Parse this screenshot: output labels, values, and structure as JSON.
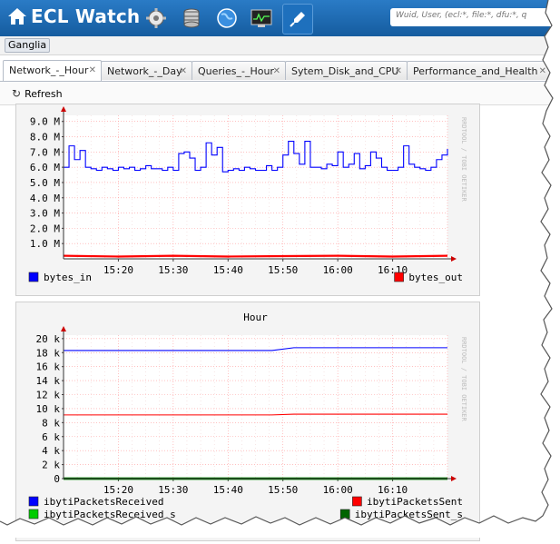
{
  "app": {
    "title": "ECL Watch"
  },
  "header": {
    "icons": [
      "home-icon",
      "gear-icon",
      "database-icon",
      "globe-icon",
      "monitor-icon",
      "plug-icon"
    ],
    "search_placeholder": "Wuid, User, (ecl:*, file:*, dfu:*, q"
  },
  "breadcrumb": {
    "label": "Ganglia"
  },
  "tabs": [
    {
      "label": "Network_-_Hour",
      "active": true
    },
    {
      "label": "Network_-_Day",
      "active": false
    },
    {
      "label": "Queries_-_Hour",
      "active": false
    },
    {
      "label": "Sytem_Disk_and_CPU",
      "active": false
    },
    {
      "label": "Performance_and_Health",
      "active": false
    }
  ],
  "toolbar": {
    "refresh_label": "Refresh"
  },
  "rrdtool_label": "RRDTOOL / TOBI OETIKER",
  "chart_data": [
    {
      "type": "line",
      "title": "",
      "y_ticks": [
        "9.0 M",
        "8.0 M",
        "7.0 M",
        "6.0 M",
        "5.0 M",
        "4.0 M",
        "3.0 M",
        "2.0 M",
        "1.0 M"
      ],
      "x_ticks": [
        "15:20",
        "15:30",
        "15:40",
        "15:50",
        "16:00",
        "16:10"
      ],
      "ylim": [
        0,
        9.4
      ],
      "y_unit": "M",
      "series": [
        {
          "name": "bytes_in",
          "color": "#0000ff",
          "x": [
            0,
            1,
            2,
            3,
            4,
            5,
            6,
            7,
            8,
            9,
            10,
            11,
            12,
            13,
            14,
            15,
            16,
            17,
            18,
            19,
            20,
            21,
            22,
            23,
            24,
            25,
            26,
            27,
            28,
            29,
            30,
            31,
            32,
            33,
            34,
            35,
            36,
            37,
            38,
            39,
            40,
            41,
            42,
            43,
            44,
            45,
            46,
            47,
            48,
            49,
            50,
            51,
            52,
            53,
            54,
            55,
            56,
            57,
            58,
            59,
            60,
            61,
            62,
            63,
            64,
            65,
            66,
            67,
            68,
            69,
            70
          ],
          "y": [
            6.0,
            7.4,
            6.5,
            7.1,
            6.0,
            5.9,
            5.8,
            6.0,
            5.9,
            5.8,
            6.0,
            5.9,
            6.0,
            5.8,
            5.9,
            6.1,
            5.9,
            5.9,
            5.8,
            6.0,
            5.8,
            6.9,
            7.0,
            6.6,
            5.8,
            6.0,
            7.6,
            6.8,
            7.3,
            5.7,
            5.8,
            5.9,
            5.8,
            6.0,
            5.9,
            5.8,
            5.8,
            6.1,
            5.8,
            6.0,
            6.8,
            7.7,
            6.9,
            6.2,
            7.7,
            6.0,
            6.0,
            5.9,
            6.2,
            6.1,
            7.0,
            6.0,
            6.2,
            6.9,
            5.9,
            6.1,
            7.0,
            6.6,
            6.0,
            5.8,
            5.8,
            6.0,
            7.4,
            6.2,
            6.0,
            5.9,
            5.8,
            6.0,
            6.5,
            6.8,
            7.2
          ]
        },
        {
          "name": "bytes_out",
          "color": "#ff0000",
          "x": [
            0,
            10,
            20,
            30,
            40,
            50,
            60,
            70
          ],
          "y": [
            0.2,
            0.15,
            0.2,
            0.15,
            0.18,
            0.2,
            0.15,
            0.2
          ]
        }
      ]
    },
    {
      "type": "line",
      "title": "Hour",
      "y_ticks": [
        "20 k",
        "18 k",
        "16 k",
        "14 k",
        "12 k",
        "10 k",
        "8 k",
        "6 k",
        "4 k",
        "2 k",
        "0"
      ],
      "x_ticks": [
        "15:20",
        "15:30",
        "15:40",
        "15:50",
        "16:00",
        "16:10"
      ],
      "ylim": [
        0,
        20.5
      ],
      "y_unit": "k",
      "series": [
        {
          "name": "ibytiPacketsReceived",
          "color": "#0000ff",
          "x": [
            0,
            10,
            38,
            42,
            70
          ],
          "y": [
            18.3,
            18.3,
            18.3,
            18.7,
            18.7
          ]
        },
        {
          "name": "ibytiPacketsSent",
          "color": "#ff0000",
          "x": [
            0,
            38,
            42,
            70
          ],
          "y": [
            9.1,
            9.1,
            9.2,
            9.2
          ]
        },
        {
          "name": "ibytiPacketsReceived_s",
          "color": "#00cc00",
          "x": [
            0,
            70
          ],
          "y": [
            0,
            0
          ]
        },
        {
          "name": "ibytiPacketsSent_s",
          "color": "#006400",
          "x": [
            0,
            70
          ],
          "y": [
            0,
            0
          ]
        }
      ]
    }
  ]
}
